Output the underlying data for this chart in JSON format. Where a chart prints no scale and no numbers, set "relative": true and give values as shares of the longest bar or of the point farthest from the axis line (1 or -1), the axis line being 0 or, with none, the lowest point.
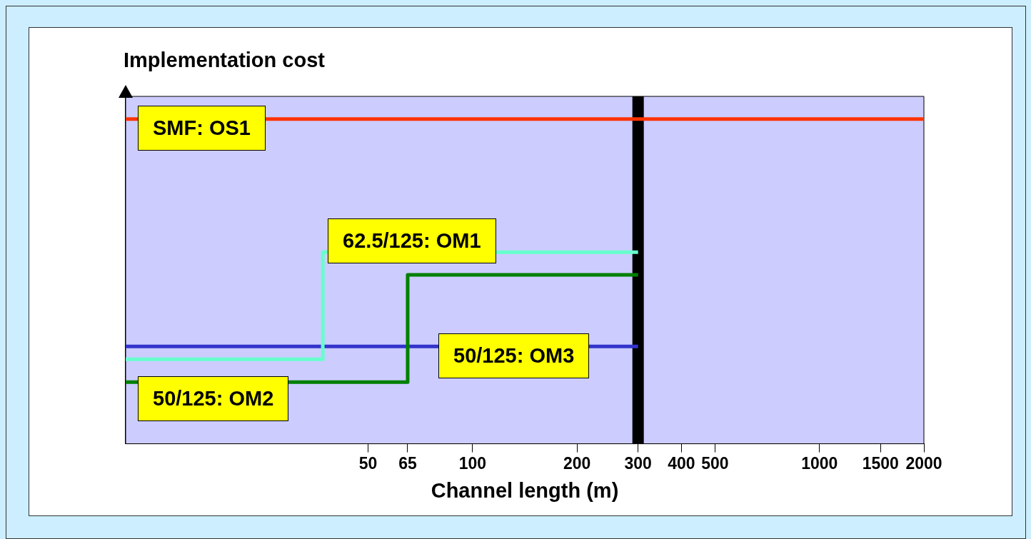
{
  "chart_data": {
    "type": "step",
    "ylabel": "Implementation cost",
    "xlabel": "Channel length (m)",
    "relative": true,
    "log": "x",
    "xlim": [
      10,
      2000
    ],
    "xticks": [
      50,
      65,
      100,
      200,
      300,
      400,
      500,
      1000,
      1500,
      2000
    ],
    "grid": false,
    "legend": false,
    "series": [
      {
        "name": "SMF: OS1",
        "color": "#ff3300",
        "x": [
          10,
          2000
        ],
        "values": [
          1,
          1
        ]
      },
      {
        "name": "62.5/125: OM1",
        "color": "#66ffcc",
        "x": [
          10,
          37,
          300
        ],
        "values": [
          0.26,
          0.59,
          0.59
        ]
      },
      {
        "name": "50/125: OM2",
        "color": "#008000",
        "x": [
          10,
          65,
          300
        ],
        "values": [
          0.19,
          0.52,
          0.52
        ]
      },
      {
        "name": "50/125: OM3",
        "color": "#3333cc",
        "x": [
          10,
          300
        ],
        "values": [
          0.3,
          0.3
        ]
      }
    ],
    "ref_lines": [
      {
        "axis": "x",
        "value": 300,
        "color": "#000000"
      }
    ]
  }
}
